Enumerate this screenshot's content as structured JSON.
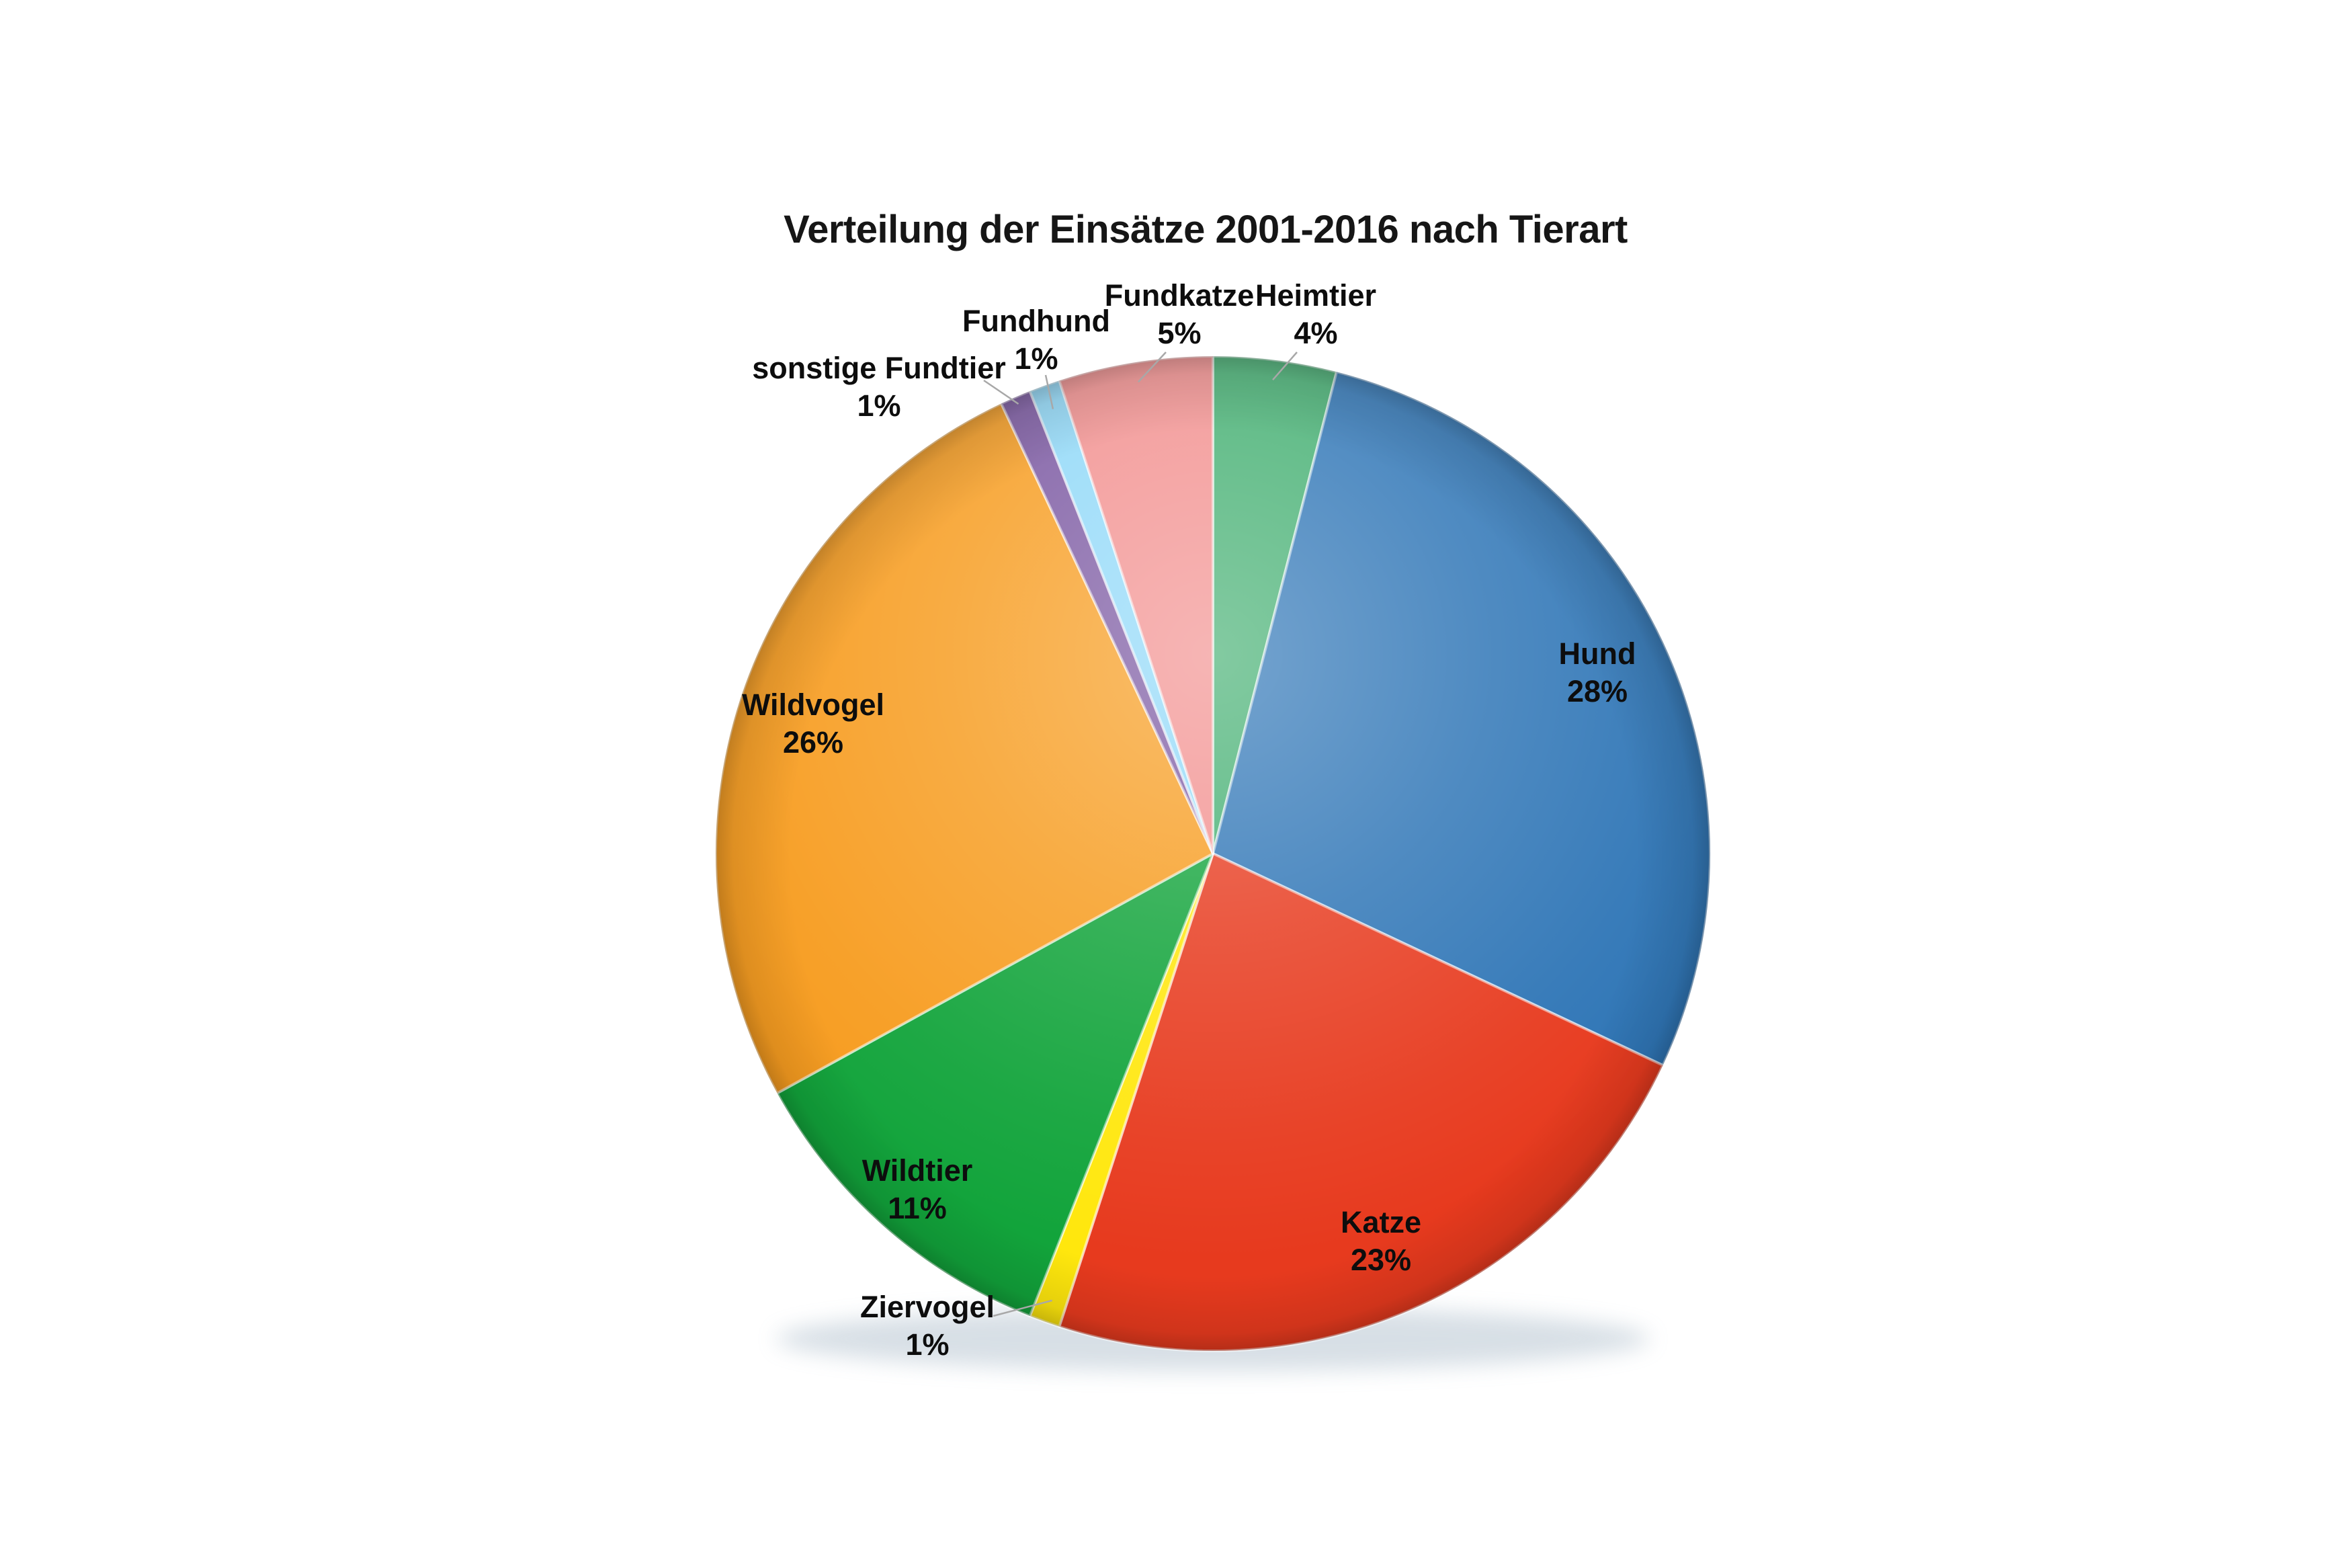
{
  "chart_data": {
    "type": "pie",
    "title": "Verteilung der Einsätze 2001-2016 nach Tierart",
    "unit": "%",
    "total_pct": 100,
    "start_angle_deg": 0,
    "direction": "clockwise",
    "legend_position": "none",
    "label_style": "name_and_percent",
    "background_color": "#ffffff",
    "title_color": "#161616",
    "label_text_color": "#0d0d0d",
    "leader_line_color": "#a8a8a8",
    "segments": [
      {
        "label": "Heimtier",
        "value_pct": 4,
        "color": "#43AF71",
        "label_placement": "outside"
      },
      {
        "label": "Hund",
        "value_pct": 28,
        "color": "#2E75B6",
        "label_placement": "inside"
      },
      {
        "label": "Katze",
        "value_pct": 23,
        "color": "#E73A1E",
        "label_placement": "inside"
      },
      {
        "label": "Ziervogel",
        "value_pct": 1,
        "color": "#FFE70D",
        "label_placement": "outside"
      },
      {
        "label": "Wildtier",
        "value_pct": 11,
        "color": "#12A43B",
        "label_placement": "inside"
      },
      {
        "label": "Wildvogel",
        "value_pct": 26,
        "color": "#F79C1F",
        "label_placement": "inside"
      },
      {
        "label": "sonstige Fundtier",
        "value_pct": 1,
        "color": "#7A57A1",
        "label_placement": "outside"
      },
      {
        "label": "Fundhund",
        "value_pct": 1,
        "color": "#8FD8F8",
        "label_placement": "outside"
      },
      {
        "label": "Fundkatze",
        "value_pct": 5,
        "color": "#F28F8E",
        "label_placement": "outside"
      }
    ]
  }
}
